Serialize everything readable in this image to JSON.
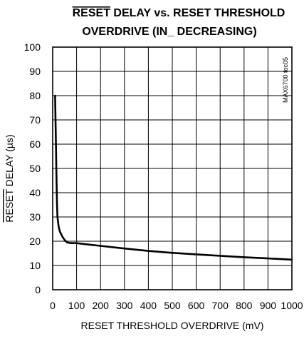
{
  "chart_data": {
    "type": "line",
    "title_line1_overbar": "RESET",
    "title_line1_rest": " DELAY vs. RESET THRESHOLD",
    "title_line2": "OVERDRIVE (IN_ DECREASING)",
    "xlabel": "RESET THRESHOLD OVERDRIVE (mV)",
    "ylabel_overbar": "RESET",
    "ylabel_rest": " DELAY (µs)",
    "side_note": "MAX6700 toc05",
    "xlim": [
      0,
      1000
    ],
    "ylim": [
      0,
      100
    ],
    "xticks": [
      "0",
      "100",
      "200",
      "300",
      "400",
      "500",
      "600",
      "700",
      "800",
      "900",
      "1000"
    ],
    "yticks": [
      "0",
      "10",
      "20",
      "30",
      "40",
      "50",
      "60",
      "70",
      "80",
      "90",
      "100"
    ],
    "grid": true,
    "series": [
      {
        "x": [
          10,
          12,
          14,
          16,
          18,
          20,
          25,
          30,
          40,
          50,
          60,
          70,
          80,
          100,
          200,
          300,
          400,
          500,
          600,
          700,
          800,
          900,
          1000
        ],
        "y": [
          80,
          70,
          58,
          45,
          36,
          30,
          26,
          24,
          22,
          20.5,
          19.5,
          19.3,
          19.2,
          19.2,
          18.1,
          17,
          16,
          15.2,
          14.6,
          14,
          13.4,
          12.9,
          12.4
        ]
      }
    ]
  }
}
